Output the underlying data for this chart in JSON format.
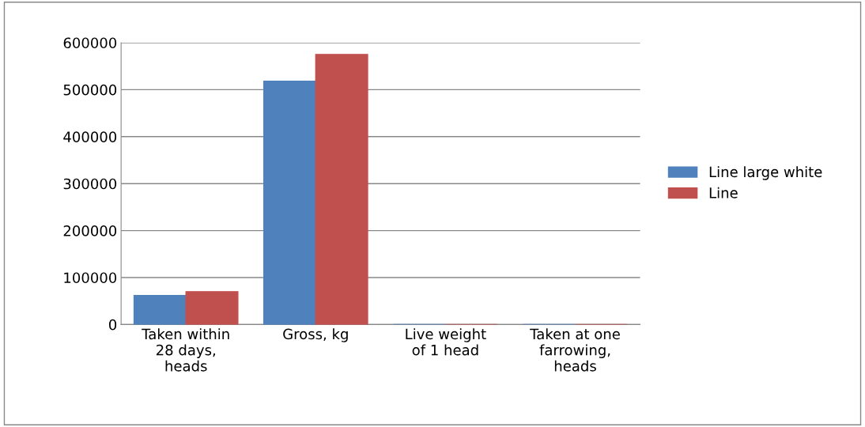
{
  "chart_data": {
    "type": "bar",
    "categories": [
      "Taken within\n28 days,\nheads",
      "Gross, kg",
      "Live weight\nof 1 head",
      "Taken at one\nfarrowing,\nheads"
    ],
    "series": [
      {
        "name": "Line large white",
        "color": "#4f81bd",
        "values": [
          62000,
          518000,
          0,
          0
        ]
      },
      {
        "name": "Line",
        "color": "#c0504d",
        "values": [
          70000,
          575000,
          0,
          0
        ]
      }
    ],
    "ylim": [
      0,
      600000
    ],
    "yticks": [
      0,
      100000,
      200000,
      300000,
      400000,
      500000,
      600000
    ],
    "grid": "y",
    "legend": "right"
  }
}
